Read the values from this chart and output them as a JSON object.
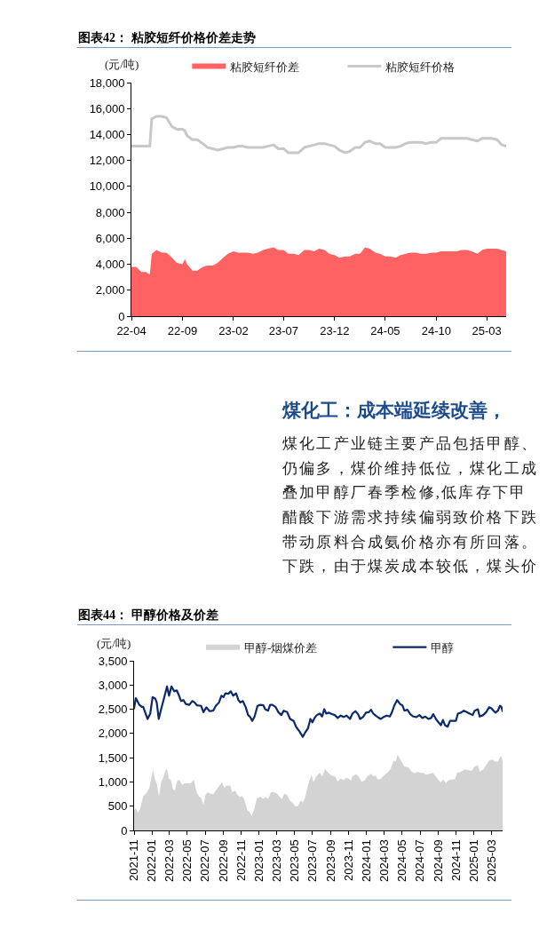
{
  "chart_data": [
    {
      "type": "area",
      "title": "图表42： 粘胶短纤价格价差走势",
      "ylabel": "(元/吨)",
      "legend": "top",
      "x": [
        "2022-04-01",
        "2022-04-15",
        "2022-05-01",
        "2022-05-15",
        "2022-05-26",
        "2022-06-01",
        "2022-06-15",
        "2022-07-01",
        "2022-07-15",
        "2022-08-01",
        "2022-08-15",
        "2022-09-01",
        "2022-09-08",
        "2022-09-15",
        "2022-10-01",
        "2022-10-15",
        "2022-11-01",
        "2022-11-15",
        "2022-12-01",
        "2022-12-15",
        "2023-01-01",
        "2023-01-15",
        "2023-02-01",
        "2023-02-15",
        "2023-03-01",
        "2023-03-15",
        "2023-04-01",
        "2023-04-15",
        "2023-05-01",
        "2023-05-15",
        "2023-06-01",
        "2023-06-15",
        "2023-07-01",
        "2023-07-15",
        "2023-08-01",
        "2023-08-15",
        "2023-09-01",
        "2023-09-15",
        "2023-10-01",
        "2023-10-15",
        "2023-11-01",
        "2023-11-15",
        "2023-12-01",
        "2023-12-15",
        "2024-01-01",
        "2024-01-15",
        "2024-02-01",
        "2024-02-15",
        "2024-03-01",
        "2024-03-15",
        "2024-04-01",
        "2024-04-15",
        "2024-05-01",
        "2024-05-15",
        "2024-06-01",
        "2024-06-15",
        "2024-07-01",
        "2024-07-15",
        "2024-08-01",
        "2024-08-15",
        "2024-09-01",
        "2024-09-15",
        "2024-10-01",
        "2024-10-15",
        "2024-11-01",
        "2024-11-15",
        "2024-12-01",
        "2024-12-15",
        "2025-01-01",
        "2025-01-15",
        "2025-02-01",
        "2025-02-15",
        "2025-03-01",
        "2025-03-15",
        "2025-04-01",
        "2025-04-15",
        "2025-04-28"
      ],
      "series": [
        {
          "name": "粘胶短纤价差",
          "type": "area",
          "color": "#ff6262",
          "values": [
            3800,
            3800,
            3400,
            3400,
            3200,
            4800,
            5100,
            4900,
            4900,
            4500,
            4100,
            4000,
            4400,
            4000,
            3500,
            3500,
            3800,
            3900,
            3900,
            4100,
            4500,
            4800,
            5000,
            4900,
            4900,
            4900,
            4800,
            4900,
            5100,
            5200,
            5300,
            5100,
            5100,
            4800,
            4800,
            4700,
            5100,
            5100,
            5000,
            5200,
            5100,
            4800,
            4700,
            4500,
            4600,
            4600,
            4800,
            4800,
            5300,
            5200,
            4900,
            4800,
            4600,
            4600,
            4500,
            4700,
            4800,
            4900,
            4900,
            4800,
            4800,
            4900,
            4900,
            5000,
            5000,
            5000,
            5000,
            5100,
            5100,
            5000,
            4800,
            5100,
            5200,
            5200,
            5200,
            5100,
            5000
          ]
        },
        {
          "name": "粘胶短纤价格",
          "type": "line",
          "color": "#c8c8c8",
          "values": [
            13100,
            13100,
            13100,
            13100,
            13100,
            15200,
            15400,
            15400,
            15300,
            14600,
            14400,
            14400,
            14300,
            13900,
            13600,
            13600,
            13300,
            13000,
            12900,
            12800,
            12900,
            13000,
            13000,
            13100,
            13100,
            13000,
            13000,
            13000,
            13000,
            13100,
            13200,
            12900,
            12900,
            12600,
            12600,
            12600,
            13000,
            13100,
            13200,
            13300,
            13300,
            13200,
            13100,
            12800,
            12600,
            12700,
            13000,
            13000,
            13400,
            13500,
            13300,
            13300,
            13000,
            13000,
            13000,
            13100,
            13300,
            13400,
            13400,
            13400,
            13300,
            13400,
            13400,
            13700,
            13700,
            13700,
            13700,
            13700,
            13700,
            13600,
            13500,
            13700,
            13700,
            13700,
            13600,
            13200,
            13100
          ]
        }
      ],
      "xlim": [
        "2022-04-01",
        "2025-04-28"
      ],
      "xticks": [
        {
          "value": "2022-04",
          "label": "22-04"
        },
        {
          "value": "2022-09",
          "label": "22-09"
        },
        {
          "value": "2023-02",
          "label": "23-02"
        },
        {
          "value": "2023-07",
          "label": "23-07"
        },
        {
          "value": "2023-12",
          "label": "23-12"
        },
        {
          "value": "2024-05",
          "label": "24-05"
        },
        {
          "value": "2024-10",
          "label": "24-10"
        },
        {
          "value": "2025-03",
          "label": "25-03"
        }
      ],
      "ylim": [
        0,
        18000
      ],
      "yticks": [
        {
          "value": 0,
          "label": "0"
        },
        {
          "value": 2000,
          "label": "2,000"
        },
        {
          "value": 4000,
          "label": "4,000"
        },
        {
          "value": 6000,
          "label": "6,000"
        },
        {
          "value": 8000,
          "label": "8,000"
        },
        {
          "value": 10000,
          "label": "10,000"
        },
        {
          "value": 12000,
          "label": "12,000"
        },
        {
          "value": 14000,
          "label": "14,000"
        },
        {
          "value": 16000,
          "label": "16,000"
        },
        {
          "value": 18000,
          "label": "18,000"
        }
      ]
    },
    {
      "type": "other",
      "title": "煤化工：成本端延续改善，",
      "annotations": [
        "煤化工产业链主要产品包括甲醇、",
        "仍偏多，煤价维持低位，煤化工成",
        "叠加甲醇厂春季检修,低库存下甲",
        "醋酸下游需求持续偏弱致价格下跌",
        "带动原料合成氨价格亦有所回落。",
        "下跌，由于煤炭成本较低，煤头价"
      ]
    },
    {
      "type": "area",
      "title": "图表44： 甲醇价格及价差",
      "ylabel": "(元/吨)",
      "legend": "top",
      "series": [
        {
          "name": "甲醇-烟煤价差",
          "type": "area",
          "color": "#d3d3d3",
          "x": [
            "2021-11-01",
            "2021-11-07",
            "2021-11-15",
            "2021-11-22",
            "2021-12-02",
            "2021-12-15",
            "2021-12-23",
            "2022-01-04",
            "2022-01-12",
            "2022-01-17",
            "2022-01-25",
            "2022-02-01",
            "2022-02-08",
            "2022-02-16",
            "2022-02-21",
            "2022-02-28",
            "2022-03-06",
            "2022-03-13",
            "2022-03-20",
            "2022-03-28",
            "2022-04-05",
            "2022-04-13",
            "2022-04-21",
            "2022-05-03",
            "2022-05-13",
            "2022-05-23",
            "2022-06-02",
            "2022-06-10",
            "2022-06-17",
            "2022-06-25",
            "2022-07-02",
            "2022-07-09",
            "2022-07-18",
            "2022-07-28",
            "2022-08-07",
            "2022-08-17",
            "2022-08-27",
            "2022-09-04",
            "2022-09-11",
            "2022-09-24",
            "2022-10-01",
            "2022-10-11",
            "2022-10-19",
            "2022-10-27",
            "2022-11-04",
            "2022-11-11",
            "2022-11-21",
            "2022-11-28",
            "2022-12-06",
            "2022-12-14",
            "2022-12-24",
            "2023-01-05",
            "2023-01-15",
            "2023-01-23",
            "2023-01-31",
            "2023-02-10",
            "2023-02-20",
            "2023-03-02",
            "2023-03-12",
            "2023-03-19",
            "2023-03-27",
            "2023-04-06",
            "2023-04-16",
            "2023-04-26",
            "2023-05-04",
            "2023-05-12",
            "2023-05-22",
            "2023-05-30",
            "2023-06-06",
            "2023-06-16",
            "2023-06-28",
            "2023-07-04",
            "2023-07-14",
            "2023-07-26",
            "2023-08-03",
            "2023-08-13",
            "2023-08-24",
            "2023-09-05",
            "2023-09-17",
            "2023-09-25",
            "2023-10-05",
            "2023-10-15",
            "2023-10-25",
            "2023-11-04",
            "2023-11-09",
            "2023-11-14",
            "2023-11-26",
            "2023-12-05",
            "2023-12-15",
            "2023-12-25",
            "2024-01-04",
            "2024-01-16",
            "2024-01-24",
            "2024-02-01",
            "2024-02-08",
            "2024-02-18",
            "2024-02-28",
            "2024-03-10",
            "2024-03-23",
            "2024-04-02",
            "2024-04-09",
            "2024-04-16",
            "2024-04-24",
            "2024-05-02",
            "2024-05-09",
            "2024-05-22",
            "2024-06-03",
            "2024-06-13",
            "2024-06-24",
            "2024-07-04",
            "2024-07-12",
            "2024-07-22",
            "2024-08-03",
            "2024-08-13",
            "2024-08-23",
            "2024-09-02",
            "2024-09-10",
            "2024-09-18",
            "2024-09-27",
            "2024-10-05",
            "2024-10-15",
            "2024-10-28",
            "2024-11-04",
            "2024-11-17",
            "2024-11-30",
            "2024-12-12",
            "2024-12-24",
            "2025-01-03",
            "2025-01-14",
            "2025-01-20",
            "2025-02-01",
            "2025-02-11",
            "2025-02-21",
            "2025-03-03",
            "2025-03-13",
            "2025-03-23",
            "2025-03-31",
            "2025-04-04",
            "2025-04-08"
          ],
          "values": [
            420,
            460,
            360,
            460,
            700,
            790,
            880,
            1240,
            1030,
            970,
            700,
            1000,
            1090,
            1240,
            1260,
            1060,
            1050,
            850,
            820,
            1030,
            1040,
            940,
            970,
            970,
            970,
            1050,
            790,
            700,
            670,
            530,
            730,
            790,
            760,
            740,
            830,
            910,
            990,
            880,
            920,
            930,
            790,
            820,
            730,
            690,
            710,
            640,
            420,
            390,
            300,
            420,
            670,
            690,
            650,
            690,
            650,
            790,
            790,
            760,
            690,
            640,
            760,
            730,
            610,
            560,
            490,
            500,
            620,
            580,
            670,
            940,
            1150,
            1000,
            1120,
            1190,
            1120,
            1270,
            1180,
            1130,
            1110,
            1010,
            1070,
            1040,
            1090,
            1060,
            1030,
            1120,
            1160,
            1120,
            1010,
            1030,
            1120,
            1170,
            1120,
            1130,
            1050,
            1060,
            1130,
            1180,
            1270,
            1440,
            1420,
            1560,
            1470,
            1390,
            1320,
            1300,
            1210,
            1180,
            1210,
            1180,
            1190,
            1150,
            1170,
            1190,
            1120,
            1040,
            990,
            1060,
            970,
            1030,
            1050,
            1060,
            1190,
            1210,
            1260,
            1240,
            1230,
            1320,
            1350,
            1210,
            1260,
            1350,
            1440,
            1460,
            1420,
            1420,
            1520,
            1530,
            1440
          ]
        },
        {
          "name": "甲醇",
          "type": "line",
          "color": "#0c2a6b",
          "x": [
            "2021-11-01",
            "2021-11-07",
            "2021-11-19",
            "2021-11-27",
            "2021-12-02",
            "2021-12-12",
            "2021-12-17",
            "2021-12-26",
            "2022-01-03",
            "2022-01-12",
            "2022-01-17",
            "2022-01-24",
            "2022-02-01",
            "2022-02-08",
            "2022-02-21",
            "2022-02-28",
            "2022-03-08",
            "2022-03-18",
            "2022-03-26",
            "2022-04-03",
            "2022-04-10",
            "2022-04-18",
            "2022-04-26",
            "2022-05-08",
            "2022-05-18",
            "2022-05-26",
            "2022-06-03",
            "2022-06-17",
            "2022-06-25",
            "2022-07-05",
            "2022-07-16",
            "2022-07-28",
            "2022-08-07",
            "2022-08-17",
            "2022-08-25",
            "2022-09-01",
            "2022-09-08",
            "2022-09-18",
            "2022-09-26",
            "2022-10-04",
            "2022-10-14",
            "2022-10-22",
            "2022-10-29",
            "2022-11-06",
            "2022-11-16",
            "2022-11-24",
            "2022-12-01",
            "2022-12-08",
            "2022-12-16",
            "2022-12-26",
            "2023-01-05",
            "2023-01-15",
            "2023-01-21",
            "2023-01-31",
            "2023-02-07",
            "2023-02-15",
            "2023-02-25",
            "2023-03-07",
            "2023-03-17",
            "2023-03-25",
            "2023-04-06",
            "2023-04-16",
            "2023-04-28",
            "2023-05-06",
            "2023-05-17",
            "2023-05-29",
            "2023-06-06",
            "2023-06-16",
            "2023-06-24",
            "2023-07-01",
            "2023-07-08",
            "2023-07-16",
            "2023-07-26",
            "2023-08-03",
            "2023-08-10",
            "2023-08-17",
            "2023-08-26",
            "2023-09-05",
            "2023-09-15",
            "2023-09-25",
            "2023-10-05",
            "2023-10-15",
            "2023-10-25",
            "2023-11-06",
            "2023-11-14",
            "2023-11-24",
            "2023-12-03",
            "2023-12-10",
            "2023-12-20",
            "2023-12-30",
            "2024-01-09",
            "2024-01-16",
            "2024-01-24",
            "2024-02-01",
            "2024-02-08",
            "2024-02-18",
            "2024-02-28",
            "2024-03-10",
            "2024-03-20",
            "2024-03-27",
            "2024-04-04",
            "2024-04-14",
            "2024-04-24",
            "2024-05-02",
            "2024-05-09",
            "2024-05-19",
            "2024-05-29",
            "2024-06-08",
            "2024-06-19",
            "2024-06-29",
            "2024-07-09",
            "2024-07-19",
            "2024-07-29",
            "2024-08-08",
            "2024-08-15",
            "2024-08-25",
            "2024-09-02",
            "2024-09-10",
            "2024-09-17",
            "2024-09-24",
            "2024-10-03",
            "2024-10-11",
            "2024-10-23",
            "2024-10-31",
            "2024-11-07",
            "2024-11-17",
            "2024-11-27",
            "2024-12-07",
            "2024-12-17",
            "2024-12-27",
            "2025-01-03",
            "2025-01-14",
            "2025-01-20",
            "2025-02-01",
            "2025-02-11",
            "2025-02-21",
            "2025-03-01",
            "2025-03-08",
            "2025-03-15",
            "2025-03-23",
            "2025-03-30",
            "2025-04-04",
            "2025-04-08"
          ],
          "values": [
            2520,
            2730,
            2590,
            2550,
            2550,
            2380,
            2300,
            2410,
            2750,
            2720,
            2640,
            2300,
            2500,
            2660,
            2970,
            2780,
            2970,
            2870,
            2890,
            2780,
            2670,
            2690,
            2610,
            2590,
            2670,
            2640,
            2580,
            2570,
            2440,
            2540,
            2460,
            2470,
            2580,
            2640,
            2780,
            2750,
            2830,
            2820,
            2870,
            2780,
            2830,
            2690,
            2640,
            2670,
            2540,
            2380,
            2340,
            2260,
            2350,
            2570,
            2590,
            2580,
            2500,
            2470,
            2590,
            2590,
            2550,
            2440,
            2380,
            2470,
            2440,
            2300,
            2260,
            2140,
            2050,
            1930,
            2020,
            2110,
            2300,
            2230,
            2320,
            2380,
            2410,
            2350,
            2500,
            2410,
            2430,
            2400,
            2380,
            2320,
            2370,
            2340,
            2370,
            2300,
            2410,
            2460,
            2400,
            2300,
            2340,
            2430,
            2440,
            2490,
            2410,
            2370,
            2340,
            2300,
            2340,
            2370,
            2350,
            2430,
            2570,
            2690,
            2610,
            2580,
            2470,
            2490,
            2400,
            2350,
            2340,
            2380,
            2320,
            2350,
            2300,
            2320,
            2400,
            2290,
            2230,
            2170,
            2280,
            2170,
            2140,
            2260,
            2260,
            2260,
            2410,
            2430,
            2470,
            2440,
            2410,
            2380,
            2470,
            2500,
            2350,
            2380,
            2440,
            2540,
            2520,
            2470,
            2430,
            2470,
            2570,
            2550,
            2460
          ]
        }
      ],
      "xlim": [
        "2021-11-01",
        "2025-04-08"
      ],
      "xticks": [
        {
          "value": "2021-11",
          "label": "2021-11"
        },
        {
          "value": "2022-01",
          "label": "2022-01"
        },
        {
          "value": "2022-03",
          "label": "2022-03"
        },
        {
          "value": "2022-05",
          "label": "2022-05"
        },
        {
          "value": "2022-07",
          "label": "2022-07"
        },
        {
          "value": "2022-09",
          "label": "2022-09"
        },
        {
          "value": "2022-11",
          "label": "2022-11"
        },
        {
          "value": "2023-01",
          "label": "2023-01"
        },
        {
          "value": "2023-03",
          "label": "2023-03"
        },
        {
          "value": "2023-05",
          "label": "2023-05"
        },
        {
          "value": "2023-07",
          "label": "2023-07"
        },
        {
          "value": "2023-09",
          "label": "2023-09"
        },
        {
          "value": "2023-11",
          "label": "2023-11"
        },
        {
          "value": "2024-01",
          "label": "2024-01"
        },
        {
          "value": "2024-03",
          "label": "2024-03"
        },
        {
          "value": "2024-05",
          "label": "2024-05"
        },
        {
          "value": "2024-07",
          "label": "2024-07"
        },
        {
          "value": "2024-09",
          "label": "2024-09"
        },
        {
          "value": "2024-11",
          "label": "2024-11"
        },
        {
          "value": "2025-01",
          "label": "2025-01"
        },
        {
          "value": "2025-03",
          "label": "2025-03"
        }
      ],
      "ylim": [
        0,
        3500
      ],
      "yticks": [
        {
          "value": 0,
          "label": "0"
        },
        {
          "value": 500,
          "label": "500"
        },
        {
          "value": 1000,
          "label": "1,000"
        },
        {
          "value": 1500,
          "label": "1,500"
        },
        {
          "value": 2000,
          "label": "2,000"
        },
        {
          "value": 2500,
          "label": "2,500"
        },
        {
          "value": 3000,
          "label": "3,000"
        },
        {
          "value": 3500,
          "label": "3,500"
        }
      ]
    }
  ]
}
